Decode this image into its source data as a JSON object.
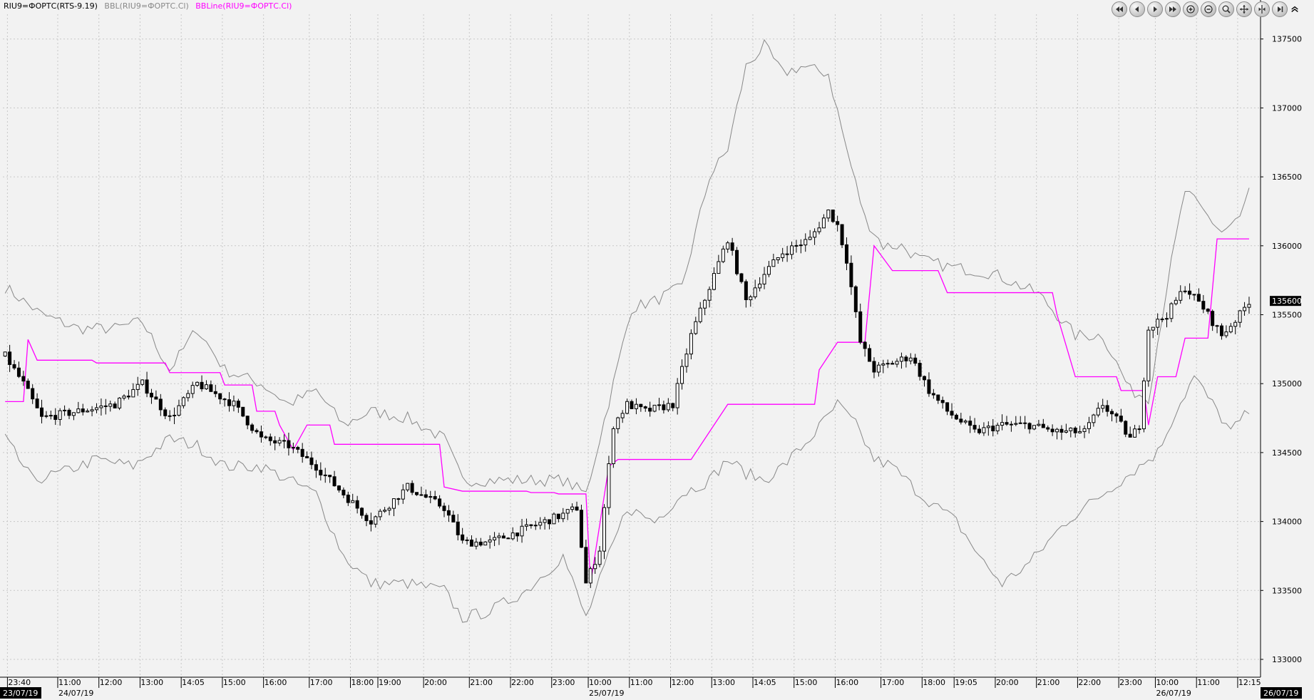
{
  "legend": {
    "instrument": "RIU9=ФОРТС(RTS-9.19)",
    "bbl": "BBL(RIU9=ФОРТС.Cl)",
    "bbline": "BBLine(RIU9=ФОРТС.Cl)"
  },
  "toolbar": [
    {
      "name": "first-page-icon"
    },
    {
      "name": "prev-icon"
    },
    {
      "name": "next-icon"
    },
    {
      "name": "last-page-icon"
    },
    {
      "name": "zoom-in-icon"
    },
    {
      "name": "zoom-out-icon"
    },
    {
      "name": "zoom-fit-icon"
    },
    {
      "name": "expand-horizontal-icon"
    },
    {
      "name": "compress-horizontal-icon"
    },
    {
      "name": "go-end-icon"
    },
    {
      "name": "collapse-panel-icon"
    }
  ],
  "colors": {
    "background": "#f2f2f2",
    "grid": "#c8c8c8",
    "candle": "#000000",
    "band": "#888888",
    "midline": "#ff00ff",
    "legend_bbl": "#888888",
    "legend_bbline": "#ff00ff"
  },
  "chart_data": {
    "type": "candlestick",
    "ylim": [
      132900,
      137750
    ],
    "yticks": [
      133000,
      133500,
      134000,
      134500,
      135000,
      135500,
      136000,
      136500,
      137000,
      137500
    ],
    "current_price": "135600",
    "grid": true,
    "x_count": 240,
    "x_ticks": [
      {
        "i": 1,
        "label": "23:40"
      },
      {
        "i": 12,
        "label": "11:00"
      },
      {
        "i": 21,
        "label": "12:00"
      },
      {
        "i": 30,
        "label": "13:00"
      },
      {
        "i": 39,
        "label": "14:05"
      },
      {
        "i": 48,
        "label": "15:00"
      },
      {
        "i": 57,
        "label": "16:00"
      },
      {
        "i": 67,
        "label": "17:00"
      },
      {
        "i": 76,
        "label": "18:00"
      },
      {
        "i": 82,
        "label": "19:00"
      },
      {
        "i": 92,
        "label": "20:00"
      },
      {
        "i": 102,
        "label": "21:00"
      },
      {
        "i": 111,
        "label": "22:00"
      },
      {
        "i": 120,
        "label": "23:00"
      },
      {
        "i": 128,
        "label": "10:00"
      },
      {
        "i": 137,
        "label": "11:00"
      },
      {
        "i": 146,
        "label": "12:00"
      },
      {
        "i": 155,
        "label": "13:00"
      },
      {
        "i": 164,
        "label": "14:05"
      },
      {
        "i": 173,
        "label": "15:00"
      },
      {
        "i": 182,
        "label": "16:00"
      },
      {
        "i": 192,
        "label": "17:00"
      },
      {
        "i": 201,
        "label": "18:00"
      },
      {
        "i": 208,
        "label": "19:05"
      },
      {
        "i": 217,
        "label": "20:00"
      },
      {
        "i": 226,
        "label": "21:00"
      },
      {
        "i": 235,
        "label": "22:00"
      },
      {
        "i": 244,
        "label": "23:00"
      },
      {
        "i": 252,
        "label": "10:00"
      },
      {
        "i": 261,
        "label": "11:00"
      },
      {
        "i": 270,
        "label": "12:15"
      }
    ],
    "date_labels": [
      {
        "i": 0,
        "label": "23/07/19",
        "boxed": true
      },
      {
        "i": 12,
        "label": "24/07/19",
        "boxed": false
      },
      {
        "i": 128,
        "label": "25/07/19",
        "boxed": false
      },
      {
        "i": 252,
        "label": "26/07/19",
        "boxed": false
      },
      {
        "i": 272,
        "label": "26/07/19",
        "boxed": true
      }
    ],
    "close_anchors": [
      [
        0,
        135200
      ],
      [
        4,
        135000
      ],
      [
        8,
        134750
      ],
      [
        16,
        134800
      ],
      [
        24,
        134850
      ],
      [
        30,
        135000
      ],
      [
        36,
        134750
      ],
      [
        42,
        135000
      ],
      [
        50,
        134850
      ],
      [
        56,
        134600
      ],
      [
        62,
        134550
      ],
      [
        68,
        134400
      ],
      [
        74,
        134200
      ],
      [
        80,
        134000
      ],
      [
        88,
        134250
      ],
      [
        96,
        134100
      ],
      [
        100,
        133850
      ],
      [
        106,
        133850
      ],
      [
        114,
        133950
      ],
      [
        122,
        134050
      ],
      [
        125,
        134100
      ],
      [
        127,
        133550
      ],
      [
        130,
        133800
      ],
      [
        133,
        134700
      ],
      [
        136,
        134850
      ],
      [
        140,
        134800
      ],
      [
        146,
        134850
      ],
      [
        150,
        135350
      ],
      [
        154,
        135700
      ],
      [
        158,
        136050
      ],
      [
        162,
        135600
      ],
      [
        166,
        135800
      ],
      [
        170,
        135950
      ],
      [
        176,
        136050
      ],
      [
        180,
        136250
      ],
      [
        182,
        136150
      ],
      [
        184,
        135900
      ],
      [
        187,
        135300
      ],
      [
        190,
        135100
      ],
      [
        194,
        135150
      ],
      [
        198,
        135200
      ],
      [
        202,
        134950
      ],
      [
        206,
        134800
      ],
      [
        212,
        134650
      ],
      [
        218,
        134700
      ],
      [
        224,
        134700
      ],
      [
        230,
        134650
      ],
      [
        236,
        134650
      ],
      [
        240,
        134850
      ],
      [
        244,
        134700
      ],
      [
        246,
        134600
      ],
      [
        248,
        134700
      ],
      [
        250,
        135400
      ],
      [
        254,
        135500
      ],
      [
        258,
        135700
      ],
      [
        262,
        135550
      ],
      [
        266,
        135350
      ],
      [
        270,
        135500
      ],
      [
        272,
        135600
      ]
    ],
    "mid_steps": [
      [
        0,
        134870
      ],
      [
        5,
        135320
      ],
      [
        7,
        135170
      ],
      [
        20,
        135150
      ],
      [
        36,
        135080
      ],
      [
        48,
        134990
      ],
      [
        55,
        134800
      ],
      [
        60,
        134700
      ],
      [
        63,
        134520
      ],
      [
        66,
        134700
      ],
      [
        72,
        134560
      ],
      [
        96,
        134250
      ],
      [
        100,
        134220
      ],
      [
        115,
        134210
      ],
      [
        121,
        134200
      ],
      [
        128,
        133550
      ],
      [
        132,
        134400
      ],
      [
        134,
        134450
      ],
      [
        150,
        134450
      ],
      [
        154,
        134650
      ],
      [
        158,
        134850
      ],
      [
        172,
        134850
      ],
      [
        178,
        135100
      ],
      [
        182,
        135300
      ],
      [
        188,
        135300
      ],
      [
        190,
        136000
      ],
      [
        194,
        135820
      ],
      [
        204,
        135820
      ],
      [
        206,
        135660
      ],
      [
        224,
        135660
      ],
      [
        230,
        135500
      ],
      [
        234,
        135050
      ],
      [
        244,
        134950
      ],
      [
        250,
        134700
      ],
      [
        252,
        135050
      ],
      [
        256,
        135050
      ],
      [
        258,
        135330
      ],
      [
        263,
        135330
      ],
      [
        265,
        136050
      ],
      [
        272,
        136050
      ]
    ],
    "upper_anchors": [
      [
        0,
        135700
      ],
      [
        8,
        135500
      ],
      [
        16,
        135400
      ],
      [
        24,
        135400
      ],
      [
        30,
        135450
      ],
      [
        36,
        135100
      ],
      [
        42,
        135400
      ],
      [
        48,
        135100
      ],
      [
        56,
        135000
      ],
      [
        62,
        134850
      ],
      [
        68,
        134950
      ],
      [
        74,
        134700
      ],
      [
        80,
        134800
      ],
      [
        88,
        134750
      ],
      [
        96,
        134600
      ],
      [
        100,
        134300
      ],
      [
        106,
        134300
      ],
      [
        114,
        134300
      ],
      [
        122,
        134300
      ],
      [
        127,
        134200
      ],
      [
        133,
        135000
      ],
      [
        137,
        135550
      ],
      [
        142,
        135600
      ],
      [
        148,
        135700
      ],
      [
        154,
        136500
      ],
      [
        158,
        136700
      ],
      [
        162,
        137300
      ],
      [
        166,
        137450
      ],
      [
        170,
        137250
      ],
      [
        174,
        137300
      ],
      [
        180,
        137250
      ],
      [
        184,
        136700
      ],
      [
        188,
        136200
      ],
      [
        192,
        136000
      ],
      [
        196,
        136000
      ],
      [
        200,
        135900
      ],
      [
        206,
        135850
      ],
      [
        216,
        135800
      ],
      [
        226,
        135650
      ],
      [
        234,
        135350
      ],
      [
        240,
        135350
      ],
      [
        246,
        134950
      ],
      [
        250,
        134900
      ],
      [
        254,
        135700
      ],
      [
        258,
        136400
      ],
      [
        262,
        136250
      ],
      [
        266,
        136100
      ],
      [
        270,
        136200
      ],
      [
        272,
        136400
      ]
    ],
    "lower_anchors": [
      [
        0,
        134600
      ],
      [
        6,
        134300
      ],
      [
        12,
        134350
      ],
      [
        20,
        134450
      ],
      [
        28,
        134400
      ],
      [
        36,
        134600
      ],
      [
        42,
        134550
      ],
      [
        48,
        134400
      ],
      [
        56,
        134400
      ],
      [
        62,
        134300
      ],
      [
        68,
        134200
      ],
      [
        74,
        133750
      ],
      [
        80,
        133550
      ],
      [
        88,
        133550
      ],
      [
        96,
        133500
      ],
      [
        100,
        133300
      ],
      [
        106,
        133350
      ],
      [
        114,
        133500
      ],
      [
        122,
        133750
      ],
      [
        127,
        133300
      ],
      [
        132,
        133750
      ],
      [
        136,
        134100
      ],
      [
        142,
        134000
      ],
      [
        148,
        134200
      ],
      [
        154,
        134300
      ],
      [
        158,
        134450
      ],
      [
        162,
        134350
      ],
      [
        166,
        134300
      ],
      [
        170,
        134400
      ],
      [
        176,
        134600
      ],
      [
        182,
        134850
      ],
      [
        186,
        134700
      ],
      [
        190,
        134450
      ],
      [
        194,
        134400
      ],
      [
        200,
        134200
      ],
      [
        208,
        134000
      ],
      [
        214,
        133700
      ],
      [
        218,
        133550
      ],
      [
        224,
        133700
      ],
      [
        232,
        134000
      ],
      [
        240,
        134200
      ],
      [
        248,
        134400
      ],
      [
        252,
        134500
      ],
      [
        256,
        134800
      ],
      [
        260,
        135050
      ],
      [
        264,
        134850
      ],
      [
        268,
        134650
      ],
      [
        272,
        134800
      ]
    ]
  }
}
